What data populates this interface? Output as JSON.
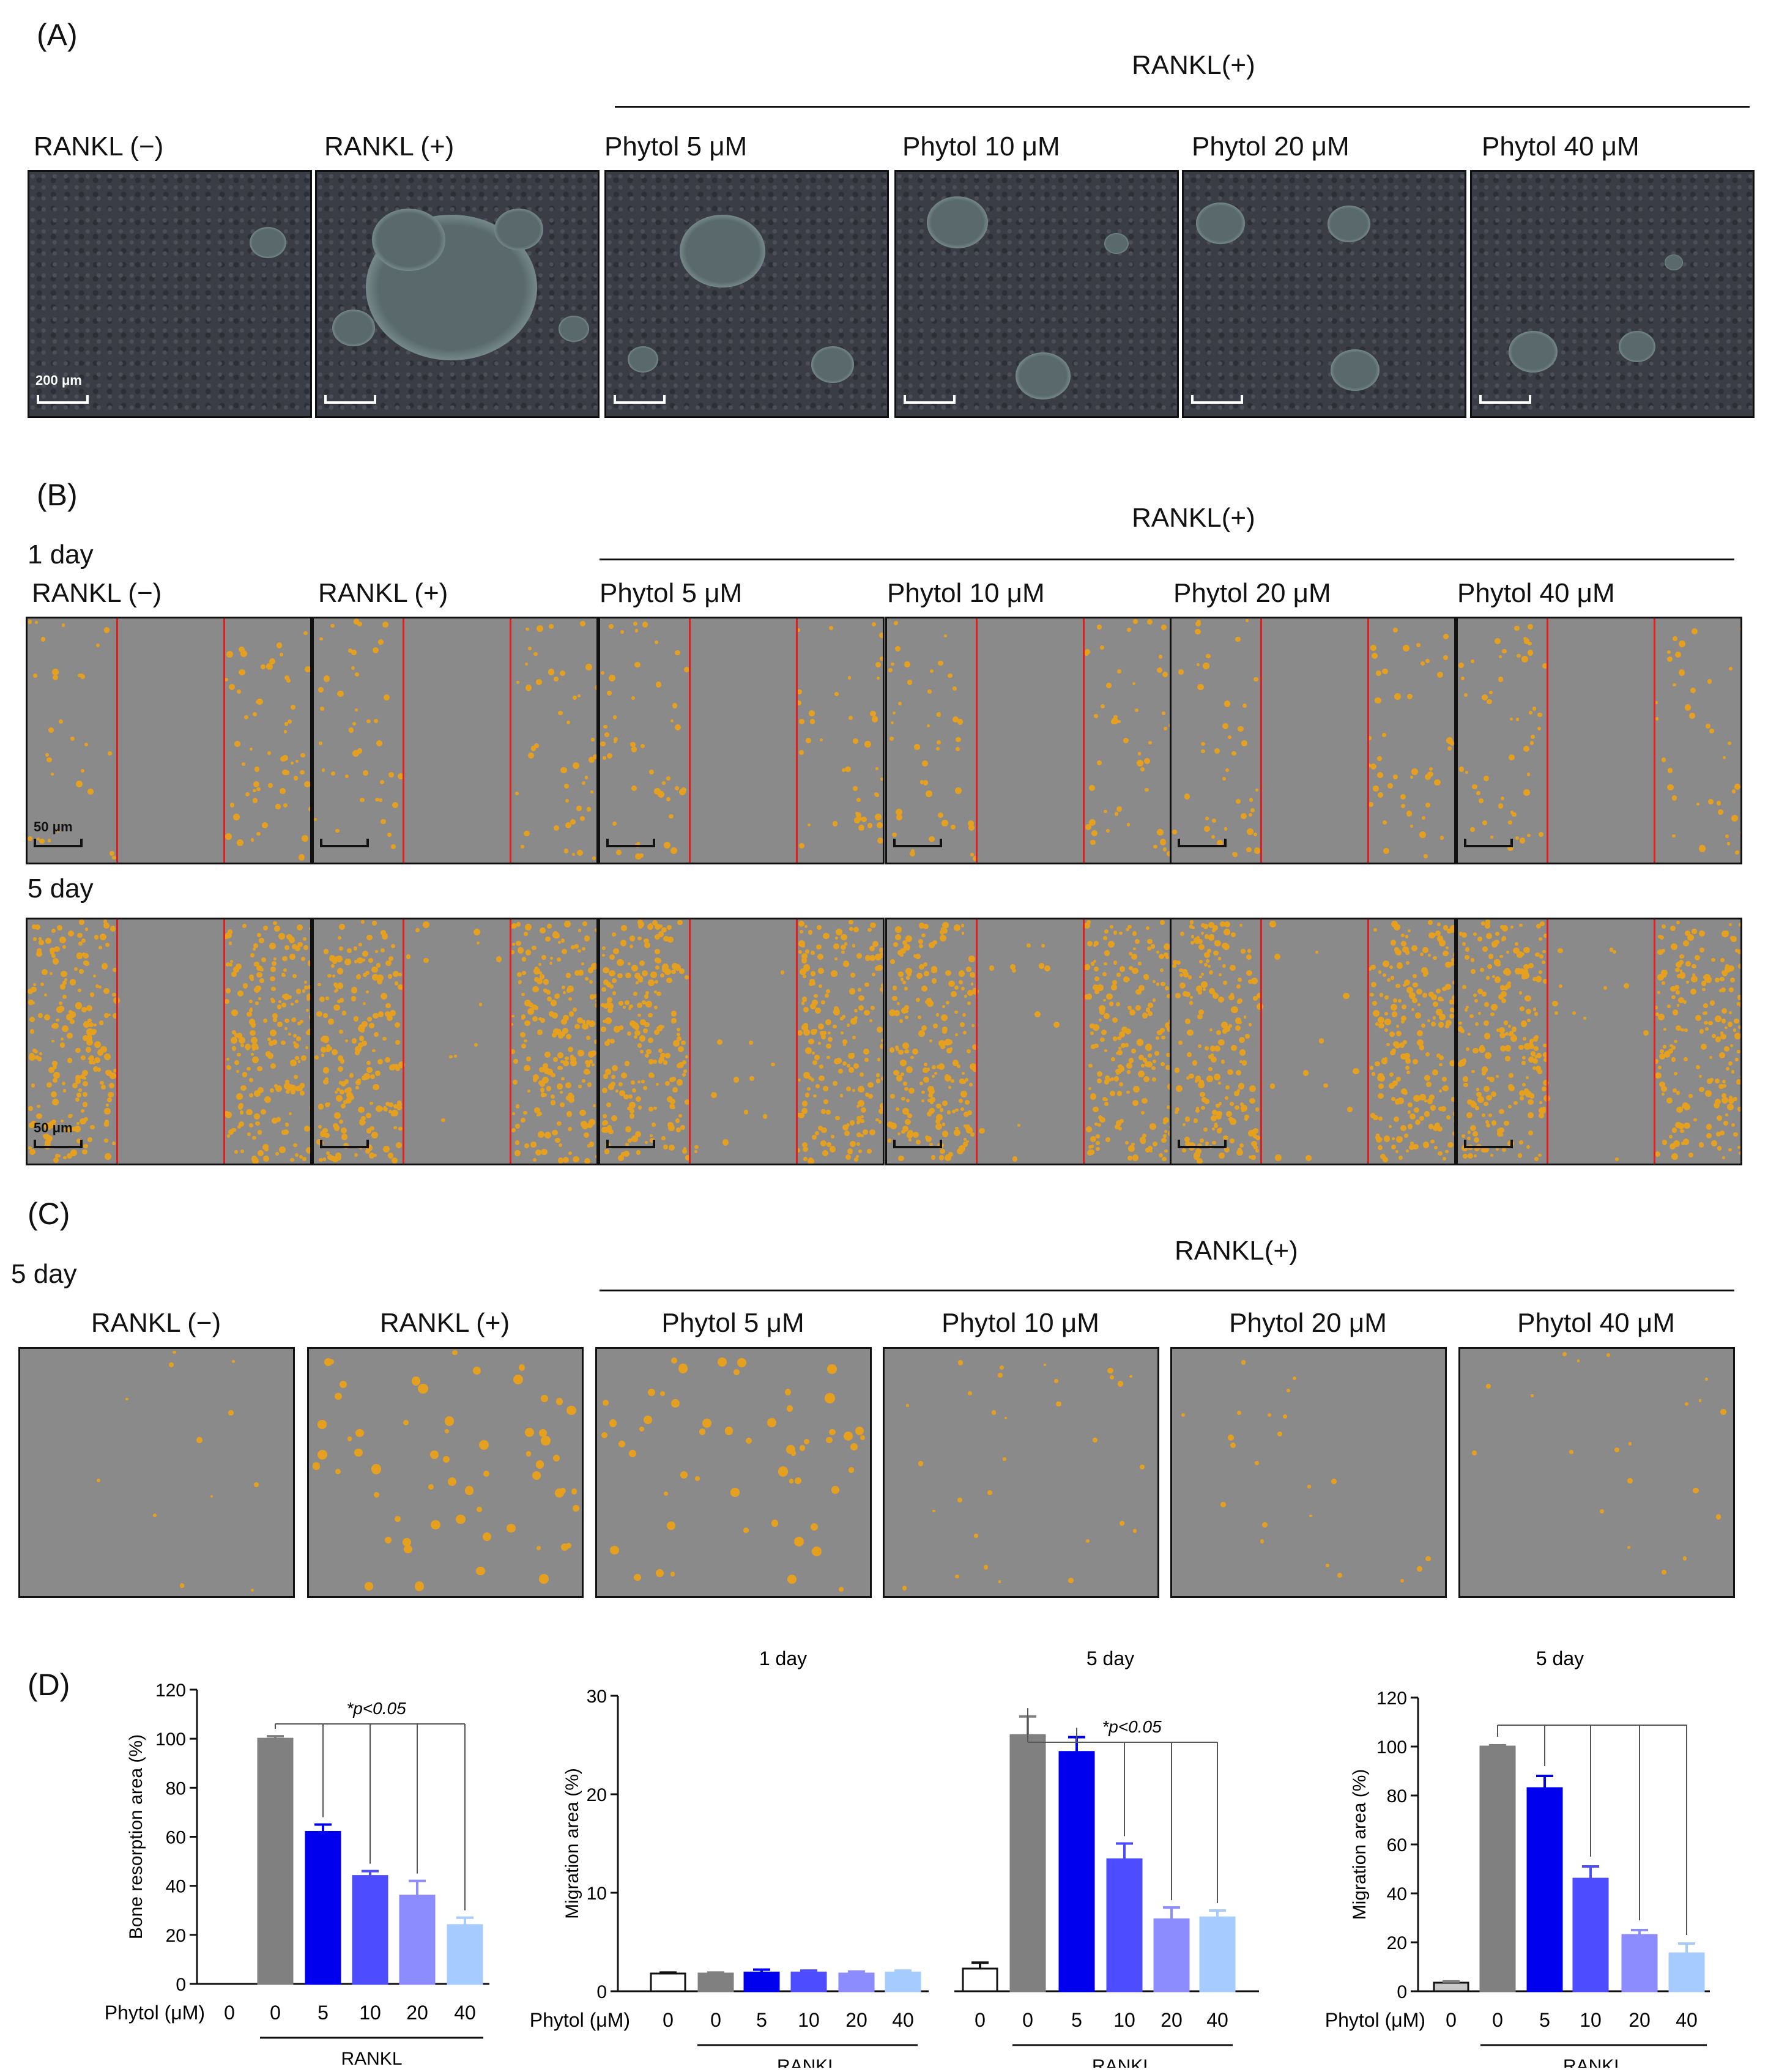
{
  "panel_a": {
    "letter": "(A)",
    "group_label": "RANKL(+)",
    "labels": [
      "RANKL (−)",
      "RANKL (+)",
      "Phytol 5  μM",
      "Phytol 10 μM",
      "Phytol 20 μM",
      "Phytol 40 μM"
    ],
    "scale_label": "200 μm"
  },
  "panel_b": {
    "letter": "(B)",
    "group_label": "RANKL(+)",
    "row1_label": "1 day",
    "row2_label": "5 day",
    "labels": [
      "RANKL (−)",
      "RANKL (+)",
      "Phytol 5 μM",
      "Phytol 10 μM",
      "Phytol 20 μM",
      "Phytol 40 μM"
    ],
    "scale_label": "50 μm"
  },
  "panel_c": {
    "letter": "(C)",
    "group_label": "RANKL(+)",
    "row_label": "5 day",
    "labels": [
      "RANKL (−)",
      "RANKL (+)",
      "Phytol 5 μM",
      "Phytol 10 μM",
      "Phytol 20 μM",
      "Phytol 40 μM"
    ]
  },
  "panel_d": {
    "letter": "(D)",
    "colors": [
      "#ffffff",
      "#808080",
      "#0000ee",
      "#4d4dff",
      "#8c8cff",
      "#a6ccff"
    ]
  },
  "chart_data": [
    {
      "type": "bar",
      "title": "",
      "ylabel": "Bone resorption area  (%)",
      "xlabel": "Phytol (μM)",
      "group_label": "RANKL",
      "categories": [
        "0",
        "0",
        "5",
        "10",
        "20",
        "40"
      ],
      "values": [
        0,
        100,
        62,
        44,
        36,
        24
      ],
      "errors": [
        0,
        1,
        3,
        2,
        6,
        3
      ],
      "ylim": [
        0,
        120
      ],
      "yticks": [
        "0",
        "20",
        "40",
        "60",
        "80",
        "100",
        "120"
      ],
      "annotation": "*p<0.05"
    },
    {
      "type": "bar",
      "subtitles": [
        "1 day",
        "5 day"
      ],
      "ylabel": "Migration area (%)",
      "xlabel": "Phytol (μM)",
      "group_label": "RANKL",
      "categories": [
        "0",
        "0",
        "5",
        "10",
        "20",
        "40",
        "0",
        "0",
        "5",
        "10",
        "20",
        "40"
      ],
      "values": [
        1.8,
        1.8,
        1.9,
        1.9,
        1.8,
        1.9,
        2.3,
        26,
        24.3,
        13.4,
        7.3,
        7.5
      ],
      "errors": [
        0.1,
        0.1,
        0.3,
        0.2,
        0.2,
        0.2,
        0.6,
        1.9,
        1.5,
        1.6,
        1.2,
        0.7
      ],
      "ylim": [
        0,
        30
      ],
      "yticks": [
        "0",
        "10",
        "20",
        "30"
      ],
      "annotation": "*p<0.05"
    },
    {
      "type": "bar",
      "title": "5 day",
      "ylabel": "Migration area  (%)",
      "xlabel": "Phytol (μM)",
      "group_label": "RANKL",
      "categories": [
        "0",
        "0",
        "5",
        "10",
        "20",
        "40"
      ],
      "values": [
        3.5,
        100,
        83,
        46,
        23,
        15.5
      ],
      "errors": [
        0.5,
        0.5,
        5,
        5,
        2,
        4
      ],
      "ylim": [
        0,
        120
      ],
      "yticks": [
        "0",
        "20",
        "40",
        "60",
        "80",
        "100",
        "120"
      ]
    }
  ]
}
